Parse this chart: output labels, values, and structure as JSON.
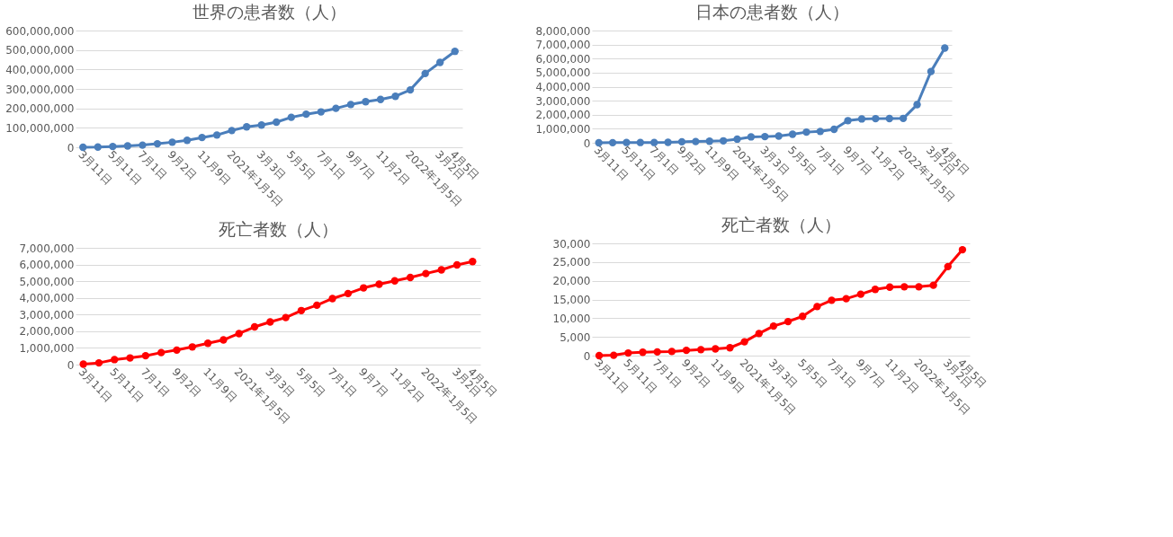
{
  "chart_data": [
    {
      "type": "line",
      "title": "世界の患者数（人）",
      "categories": [
        "3月11日",
        null,
        "5月11日",
        null,
        "7月1日",
        null,
        "9月2日",
        null,
        "11月9日",
        null,
        "2021年1月5日",
        null,
        "3月3日",
        null,
        "5月5日",
        null,
        "7月1日",
        null,
        "9月7日",
        null,
        "11月2日",
        null,
        "2022年1月5日",
        null,
        "3月2日",
        "4月5日"
      ],
      "series": [
        {
          "color": "#4a7ebb",
          "values": [
            0,
            1000000,
            4000000,
            7000000,
            11000000,
            18000000,
            26000000,
            36000000,
            50000000,
            63000000,
            86000000,
            105000000,
            114000000,
            129000000,
            154000000,
            170000000,
            182000000,
            200000000,
            220000000,
            234000000,
            246000000,
            262000000,
            295000000,
            379000000,
            436000000,
            493000000
          ]
        }
      ],
      "ylim": [
        0,
        600000000
      ],
      "yticks": [
        0,
        {
          "value": 100000000,
          "label": "100,000,000"
        },
        {
          "value": 200000000,
          "label": "200,000,000"
        },
        {
          "value": 300000000,
          "label": "300,000,000"
        },
        {
          "value": 400000000,
          "label": "400,000,000"
        },
        {
          "value": 500000000,
          "label": "500,000,000"
        },
        {
          "value": 600000000,
          "label": "600,000,000"
        }
      ],
      "grid": "y",
      "marker": "circle"
    },
    {
      "type": "line",
      "title": "死亡者数（人）",
      "categories": [
        "3月11日",
        null,
        "5月11日",
        null,
        "7月1日",
        null,
        "9月2日",
        null,
        "11月9日",
        null,
        "2021年1月5日",
        null,
        "3月3日",
        null,
        "5月5日",
        null,
        "7月1日",
        null,
        "9月7日",
        null,
        "11月2日",
        null,
        "2022年1月5日",
        null,
        "3月2日",
        "4月5日"
      ],
      "series": [
        {
          "color": "#ff0000",
          "values": [
            30000,
            100000,
            300000,
            400000,
            530000,
            720000,
            870000,
            1060000,
            1280000,
            1480000,
            1860000,
            2260000,
            2560000,
            2820000,
            3240000,
            3560000,
            3960000,
            4260000,
            4600000,
            4820000,
            5020000,
            5220000,
            5460000,
            5680000,
            5980000,
            6180000
          ]
        }
      ],
      "ylim": [
        0,
        7000000
      ],
      "yticks": [
        0,
        {
          "value": 1000000,
          "label": "1,000,000"
        },
        {
          "value": 2000000,
          "label": "2,000,000"
        },
        {
          "value": 3000000,
          "label": "3,000,000"
        },
        {
          "value": 4000000,
          "label": "4,000,000"
        },
        {
          "value": 5000000,
          "label": "5,000,000"
        },
        {
          "value": 6000000,
          "label": "6,000,000"
        },
        {
          "value": 7000000,
          "label": "7,000,000"
        }
      ],
      "grid": "y",
      "marker": "circle"
    },
    {
      "type": "line",
      "title": "日本の患者数（人）",
      "categories": [
        "3月11日",
        null,
        "5月11日",
        null,
        "7月1日",
        null,
        "9月2日",
        null,
        "11月9日",
        null,
        "2021年1月5日",
        null,
        "3月3日",
        null,
        "5月5日",
        null,
        "7月1日",
        null,
        "9月7日",
        null,
        "11月2日",
        null,
        "2022年1月5日",
        null,
        "3月2日",
        "4月5日"
      ],
      "series": [
        {
          "color": "#4a7ebb",
          "values": [
            0,
            10000,
            20000,
            20000,
            20000,
            30000,
            70000,
            90000,
            110000,
            140000,
            260000,
            420000,
            440000,
            480000,
            610000,
            760000,
            810000,
            960000,
            1580000,
            1700000,
            1720000,
            1730000,
            1740000,
            2720000,
            5080000,
            6750000
          ]
        }
      ],
      "ylim": [
        0,
        8000000
      ],
      "yticks": [
        0,
        {
          "value": 1000000,
          "label": "1,000,000"
        },
        {
          "value": 2000000,
          "label": "2,000,000"
        },
        {
          "value": 3000000,
          "label": "3,000,000"
        },
        {
          "value": 4000000,
          "label": "4,000,000"
        },
        {
          "value": 5000000,
          "label": "5,000,000"
        },
        {
          "value": 6000000,
          "label": "6,000,000"
        },
        {
          "value": 7000000,
          "label": "7,000,000"
        },
        {
          "value": 8000000,
          "label": "8,000,000"
        }
      ],
      "grid": "y",
      "marker": "circle"
    },
    {
      "type": "line",
      "title": "死亡者数（人）",
      "categories": [
        "3月11日",
        null,
        "5月11日",
        null,
        "7月1日",
        null,
        "9月2日",
        null,
        "11月9日",
        null,
        "2021年1月5日",
        null,
        "3月3日",
        null,
        "5月5日",
        null,
        "7月1日",
        null,
        "9月7日",
        null,
        "11月2日",
        null,
        "2022年1月5日",
        null,
        "3月2日",
        "4月5日"
      ],
      "series": [
        {
          "color": "#ff0000",
          "values": [
            0,
            100,
            700,
            900,
            1000,
            1100,
            1400,
            1600,
            1800,
            2100,
            3700,
            5900,
            7900,
            9100,
            10500,
            13100,
            14800,
            15200,
            16400,
            17700,
            18300,
            18400,
            18400,
            18800,
            23800,
            28300
          ]
        }
      ],
      "ylim": [
        0,
        30000
      ],
      "yticks": [
        0,
        {
          "value": 5000,
          "label": "5,000"
        },
        {
          "value": 10000,
          "label": "10,000"
        },
        {
          "value": 15000,
          "label": "15,000"
        },
        {
          "value": 20000,
          "label": "20,000"
        },
        {
          "value": 25000,
          "label": "25,000"
        },
        {
          "value": 30000,
          "label": "30,000"
        }
      ],
      "grid": "y",
      "marker": "circle"
    }
  ]
}
